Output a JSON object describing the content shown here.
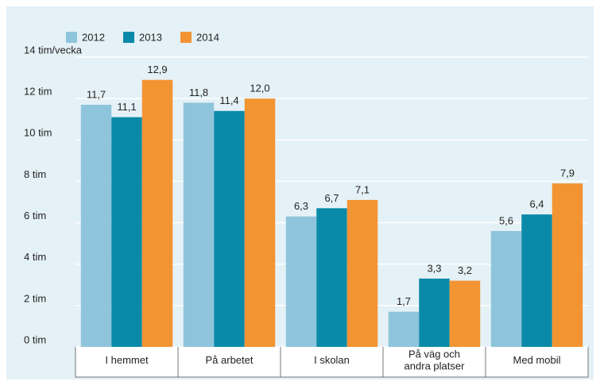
{
  "chart_data": {
    "type": "bar",
    "categories": [
      "I hemmet",
      "På arbetet",
      "I skolan",
      "På väg och\nandra platser",
      "Med mobil"
    ],
    "series": [
      {
        "name": "2012",
        "color": "#8fc5dc",
        "values": [
          11.7,
          11.8,
          6.3,
          1.7,
          5.6
        ],
        "value_labels": [
          "11,7",
          "11,8",
          "6,3",
          "1,7",
          "5,6"
        ]
      },
      {
        "name": "2013",
        "color": "#0a8aa8",
        "values": [
          11.1,
          11.4,
          6.7,
          3.3,
          6.4
        ],
        "value_labels": [
          "11,1",
          "11,4",
          "6,7",
          "3,3",
          "6,4"
        ]
      },
      {
        "name": "2014",
        "color": "#f39433",
        "values": [
          12.9,
          12.0,
          7.1,
          3.2,
          7.9
        ],
        "value_labels": [
          "12,9",
          "12,0",
          "7,1",
          "3,2",
          "7,9"
        ]
      }
    ],
    "ylim": [
      0,
      14
    ],
    "yticks": [
      {
        "value": 0,
        "label": "0 tim"
      },
      {
        "value": 2,
        "label": "2 tim"
      },
      {
        "value": 4,
        "label": "4 tim"
      },
      {
        "value": 6,
        "label": "6 tim"
      },
      {
        "value": 8,
        "label": "8 tim"
      },
      {
        "value": 10,
        "label": "10 tim"
      },
      {
        "value": 12,
        "label": "12 tim"
      },
      {
        "value": 14,
        "label": "14 tim/vecka"
      }
    ],
    "grid": true
  }
}
